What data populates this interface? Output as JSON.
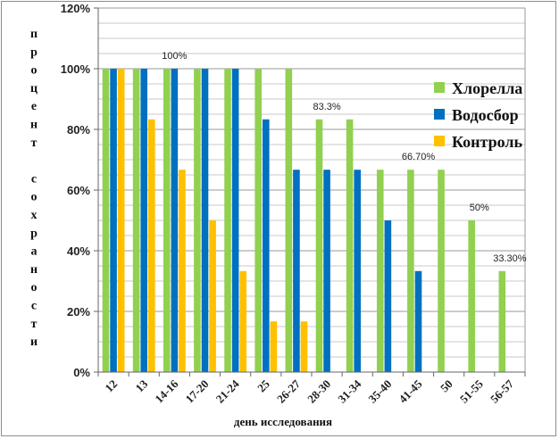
{
  "chart_data": {
    "type": "bar",
    "title": "",
    "xlabel": "день исследования",
    "ylabel": "процент сохраности",
    "ylim": [
      0,
      120
    ],
    "ytick_values": [
      0,
      20,
      40,
      60,
      80,
      100,
      120
    ],
    "ytick_labels": [
      "0%",
      "20%",
      "40%",
      "60%",
      "80%",
      "100%",
      "120%"
    ],
    "grid": true,
    "legend_position": "right",
    "categories": [
      "12",
      "13",
      "14-16",
      "17-20",
      "21-24",
      "25",
      "26-27",
      "28-30",
      "31-34",
      "35-40",
      "41-45",
      "50",
      "51-55",
      "56-57"
    ],
    "series": [
      {
        "name": "Хлорелла",
        "color": "#92d050",
        "values": [
          100,
          100,
          100,
          100,
          100,
          100,
          100,
          83.3,
          83.3,
          66.7,
          66.7,
          66.7,
          50,
          33.3
        ]
      },
      {
        "name": "Водосбор",
        "color": "#0070c0",
        "values": [
          100,
          100,
          100,
          100,
          100,
          83.3,
          66.7,
          66.7,
          66.7,
          50,
          33.3,
          0,
          0,
          0
        ]
      },
      {
        "name": "Контроль",
        "color": "#ffc000",
        "values": [
          100,
          83.3,
          66.7,
          50,
          33.3,
          16.7,
          16.7,
          0,
          0,
          0,
          0,
          0,
          0,
          0
        ]
      }
    ],
    "annotations": [
      {
        "text": "100%",
        "category": "14-16",
        "value": 100
      },
      {
        "text": "83.3%",
        "category": "28-30",
        "value": 83.3
      },
      {
        "text": "66.70%",
        "category": "41-45",
        "value": 66.7
      },
      {
        "text": "50%",
        "category": "51-55",
        "value": 50
      },
      {
        "text": "33.30%",
        "category": "56-57",
        "value": 33.3
      }
    ]
  }
}
